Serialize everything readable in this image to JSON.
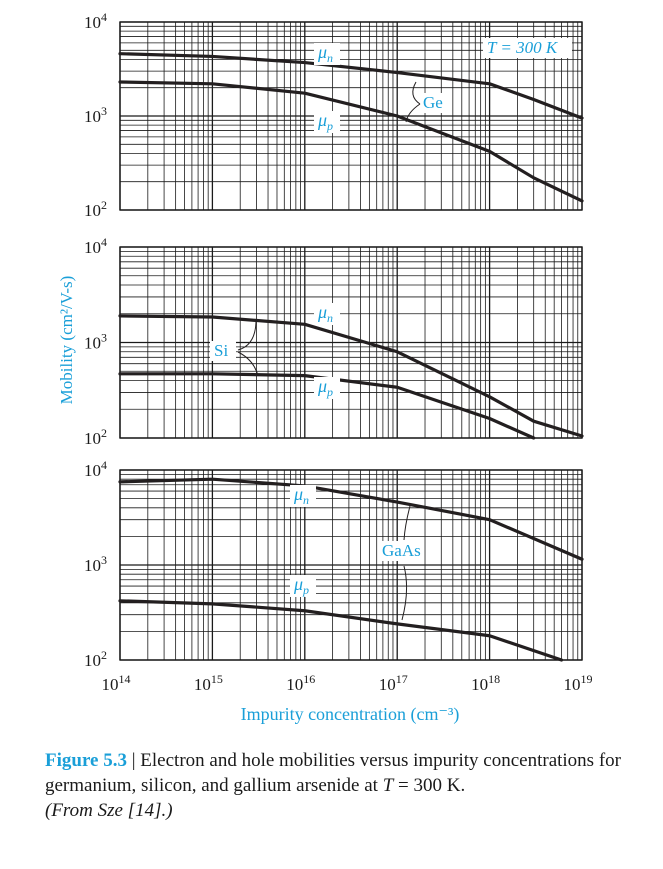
{
  "chart_data": {
    "type": "line",
    "ylabel": "Mobility (cm²/V-s)",
    "xlabel": "Impurity concentration (cm⁻³)",
    "x_scale": "log",
    "y_scale": "log",
    "xlim": [
      100000000000000.0,
      1e+19
    ],
    "x_tick_labels": [
      "10¹⁴",
      "10¹⁵",
      "10¹⁶",
      "10¹⁷",
      "10¹⁸",
      "10¹⁹"
    ],
    "panels": [
      {
        "material": "Ge",
        "temperature_label": "T = 300 K",
        "ylim": [
          100,
          10000
        ],
        "y_tick_labels": [
          "10⁴",
          "10³",
          "10²"
        ],
        "series": [
          {
            "name": "μn",
            "x": [
              100000000000000.0,
              1000000000000000.0,
              1e+16,
              1e+17,
              1e+18,
              3e+18,
              1e+19
            ],
            "values": [
              4600,
              4300,
              3700,
              2900,
              2200,
              1500,
              950
            ]
          },
          {
            "name": "μp",
            "x": [
              100000000000000.0,
              1000000000000000.0,
              1e+16,
              1e+17,
              1e+18,
              3e+18,
              1e+19
            ],
            "values": [
              2300,
              2200,
              1750,
              1000,
              420,
              220,
              125
            ]
          }
        ]
      },
      {
        "material": "Si",
        "ylim": [
          100,
          10000
        ],
        "y_tick_labels": [
          "10⁴",
          "10³",
          "10²"
        ],
        "series": [
          {
            "name": "μn",
            "x": [
              100000000000000.0,
              1000000000000000.0,
              1e+16,
              1e+17,
              1e+18,
              3e+18,
              1e+19
            ],
            "values": [
              1900,
              1850,
              1550,
              800,
              270,
              150,
              105
            ]
          },
          {
            "name": "μp",
            "x": [
              100000000000000.0,
              1000000000000000.0,
              1e+16,
              1e+17,
              1e+18,
              3e+18
            ],
            "values": [
              470,
              470,
              450,
              340,
              160,
              100
            ]
          }
        ]
      },
      {
        "material": "GaAs",
        "ylim": [
          100,
          10000
        ],
        "y_tick_labels": [
          "10⁴",
          "10³",
          "10²"
        ],
        "series": [
          {
            "name": "μn",
            "x": [
              100000000000000.0,
              1000000000000000.0,
              1e+16,
              1e+17,
              1e+18,
              1e+19
            ],
            "values": [
              7500,
              8000,
              6800,
              4600,
              3000,
              1150
            ]
          },
          {
            "name": "μp",
            "x": [
              100000000000000.0,
              1000000000000000.0,
              1e+16,
              1e+17,
              1e+18,
              6e+18
            ],
            "values": [
              420,
              390,
              330,
              240,
              180,
              100
            ]
          }
        ]
      }
    ],
    "grid": true,
    "colors": {
      "curve": "#231f20",
      "label": "#1a9fd8",
      "grid": "#1a1a1a"
    }
  },
  "caption": {
    "label": "Figure 5.3",
    "separator": "|",
    "text": "Electron and hole mobilities versus impurity concentrations for germanium, silicon, and gallium arsenide at",
    "temp_var": "T",
    "temp_value": "= 300 K.",
    "source": "(From Sze [14].)"
  }
}
